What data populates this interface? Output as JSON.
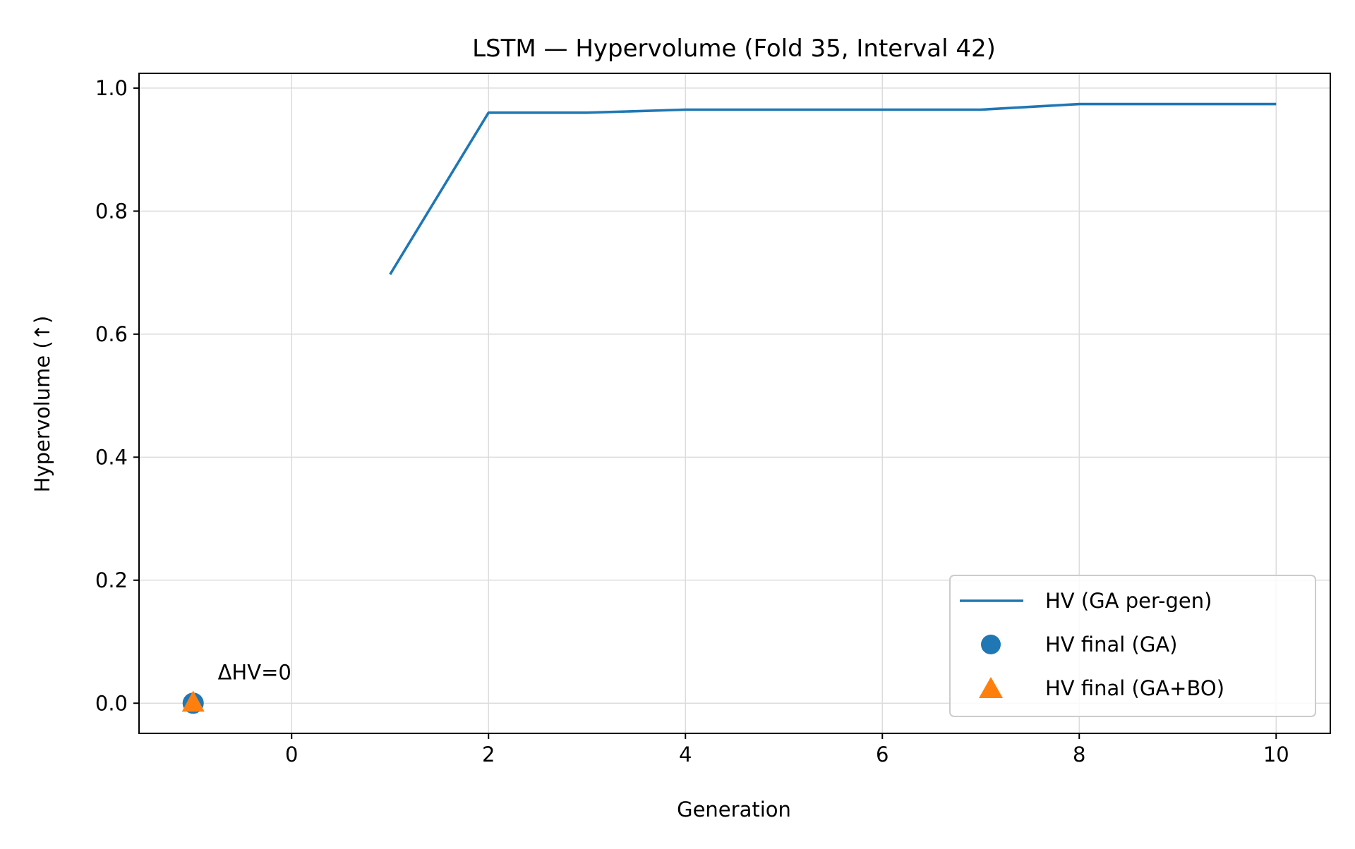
{
  "chart_data": {
    "type": "line",
    "title": "LSTM — Hypervolume (Fold 35, Interval 42)",
    "xlabel": "Generation",
    "ylabel": "Hypervolume (↑)",
    "xlim": [
      -1.55,
      10.55
    ],
    "ylim": [
      -0.049,
      1.024
    ],
    "xticks": [
      0,
      2,
      4,
      6,
      8,
      10
    ],
    "xtick_labels": [
      "0",
      "2",
      "4",
      "6",
      "8",
      "10"
    ],
    "yticks": [
      0.0,
      0.2,
      0.4,
      0.6,
      0.8,
      1.0
    ],
    "ytick_labels": [
      "0.0",
      "0.2",
      "0.4",
      "0.6",
      "0.8",
      "1.0"
    ],
    "grid": true,
    "legend_position": "lower-right",
    "series": [
      {
        "name": "HV (GA per-gen)",
        "kind": "line",
        "color": "#1f77b4",
        "x": [
          1,
          2,
          3,
          4,
          5,
          6,
          7,
          8,
          9,
          10
        ],
        "y": [
          0.697,
          0.96,
          0.96,
          0.965,
          0.965,
          0.965,
          0.965,
          0.974,
          0.974,
          0.974
        ]
      },
      {
        "name": "HV final (GA)",
        "kind": "scatter",
        "marker": "circle",
        "color": "#1f77b4",
        "x": [
          -1
        ],
        "y": [
          0.0
        ]
      },
      {
        "name": "HV final (GA+BO)",
        "kind": "scatter",
        "marker": "triangle",
        "color": "#ff7f0e",
        "x": [
          -1
        ],
        "y": [
          0.0
        ]
      }
    ],
    "annotations": [
      {
        "text": "ΔHV=0",
        "x": -0.75,
        "y": 0.05
      }
    ]
  }
}
